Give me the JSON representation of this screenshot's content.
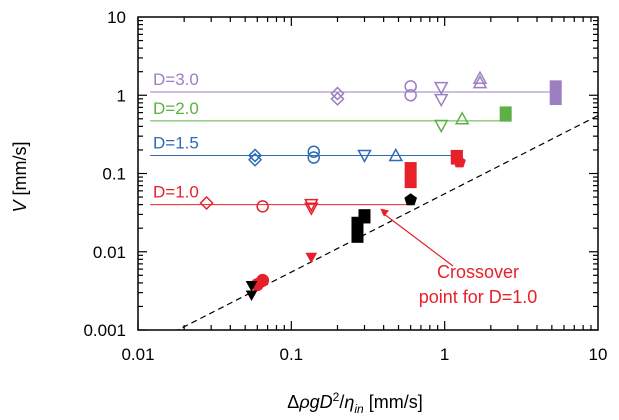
{
  "chart_data": {
    "type": "scatter",
    "xscale": "log",
    "yscale": "log",
    "xlim": [
      0.01,
      10
    ],
    "ylim": [
      0.001,
      10
    ],
    "x_tick_labels": [
      "0.01",
      "0.1",
      "1",
      "10"
    ],
    "y_tick_labels": [
      "0.001",
      "0.01",
      "0.1",
      "1",
      "10"
    ],
    "xlabel_parts": {
      "delta": "Δ",
      "rho": "ρ",
      "g": "g",
      "D": "D",
      "exp": "2",
      "slash": "/",
      "eta": "η",
      "sub": "in",
      "units": " [mm/s]"
    },
    "ylabel_parts": {
      "V": "V",
      "units": " [mm/s]"
    },
    "grid": false,
    "reference_line": {
      "style": "dashed",
      "color": "#000000",
      "slope": 1,
      "points": [
        [
          0.01,
          0.00055
        ],
        [
          10,
          0.55
        ]
      ]
    },
    "series": [
      {
        "name": "D=3.0",
        "color": "#9b7fc0",
        "plateau": 1.1,
        "plateau_x": [
          0.012,
          5.2
        ],
        "points": [
          {
            "x": 0.2,
            "y": 1.05,
            "m": "diamond"
          },
          {
            "x": 0.2,
            "y": 0.9,
            "m": "diamond"
          },
          {
            "x": 0.6,
            "y": 1.3,
            "m": "circle"
          },
          {
            "x": 0.6,
            "y": 1.0,
            "m": "circle"
          },
          {
            "x": 0.95,
            "y": 1.25,
            "m": "tri-down"
          },
          {
            "x": 0.95,
            "y": 0.88,
            "m": "tri-down"
          },
          {
            "x": 1.7,
            "y": 1.65,
            "m": "tri-up"
          },
          {
            "x": 1.7,
            "y": 1.45,
            "m": "tri-up"
          },
          {
            "x": 5.3,
            "y": 1.1,
            "m": "bar",
            "ylo": 0.75,
            "yhi": 1.55
          }
        ]
      },
      {
        "name": "D=2.0",
        "color": "#5cb046",
        "plateau": 0.47,
        "plateau_x": [
          0.012,
          2.5
        ],
        "points": [
          {
            "x": 0.95,
            "y": 0.41,
            "m": "tri-down"
          },
          {
            "x": 1.3,
            "y": 0.5,
            "m": "tri-up"
          },
          {
            "x": 2.5,
            "y": 0.58,
            "m": "bar",
            "ylo": 0.46,
            "yhi": 0.72
          }
        ]
      },
      {
        "name": "D=1.5",
        "color": "#2e6bb5",
        "plateau": 0.17,
        "plateau_x": [
          0.012,
          1.2
        ],
        "points": [
          {
            "x": 0.058,
            "y": 0.17,
            "m": "diamond"
          },
          {
            "x": 0.058,
            "y": 0.15,
            "m": "diamond"
          },
          {
            "x": 0.14,
            "y": 0.19,
            "m": "circle"
          },
          {
            "x": 0.14,
            "y": 0.16,
            "m": "circle"
          },
          {
            "x": 0.3,
            "y": 0.17,
            "m": "tri-down"
          },
          {
            "x": 0.48,
            "y": 0.17,
            "m": "tri-up"
          },
          {
            "x": 1.2,
            "y": 0.17,
            "m": "bar",
            "ylo": 0.15,
            "yhi": 0.2
          }
        ]
      },
      {
        "name": "D=1.0",
        "color": "#e8202a",
        "plateau": 0.04,
        "plateau_x": [
          0.012,
          0.6
        ],
        "points": [
          {
            "x": 0.028,
            "y": 0.042,
            "m": "diamond"
          },
          {
            "x": 0.065,
            "y": 0.038,
            "m": "circle"
          },
          {
            "x": 0.135,
            "y": 0.04,
            "m": "tri-down"
          },
          {
            "x": 0.135,
            "y": 0.036,
            "m": "tri-down"
          },
          {
            "x": 0.6,
            "y": 0.1,
            "m": "bar",
            "ylo": 0.065,
            "yhi": 0.14
          },
          {
            "x": 1.2,
            "y": 0.17,
            "m": "bar",
            "ylo": 0.13,
            "yhi": 0.2
          },
          {
            "x": 0.065,
            "y": 0.0043,
            "m": "filled-circle"
          },
          {
            "x": 0.06,
            "y": 0.0038,
            "m": "filled-circle"
          },
          {
            "x": 0.135,
            "y": 0.0085,
            "m": "filled-tri-down"
          },
          {
            "x": 1.25,
            "y": 0.14,
            "m": "filled-pentagon"
          }
        ]
      },
      {
        "color": "#000000",
        "points": [
          {
            "x": 0.055,
            "y": 0.0028,
            "m": "filled-tri-down"
          },
          {
            "x": 0.055,
            "y": 0.0037,
            "m": "filled-tri-down"
          },
          {
            "x": 0.27,
            "y": 0.02,
            "m": "bar",
            "ylo": 0.013,
            "yhi": 0.028
          },
          {
            "x": 0.3,
            "y": 0.028,
            "m": "bar",
            "ylo": 0.023,
            "yhi": 0.035
          },
          {
            "x": 0.6,
            "y": 0.046,
            "m": "filled-pentagon"
          }
        ]
      }
    ],
    "annotations": [
      {
        "text_lines": [
          "Crossover",
          "point for D=1.0"
        ],
        "color": "#e8202a",
        "arrow_to": [
          0.38,
          0.04
        ]
      }
    ]
  }
}
